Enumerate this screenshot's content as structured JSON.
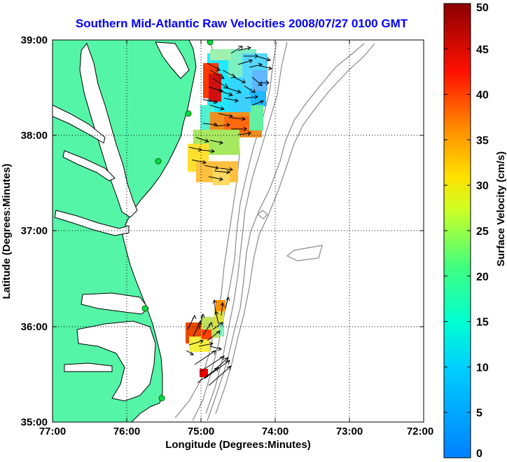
{
  "title": "Southern Mid-Atlantic Raw Velocities 2008/07/27 0100 GMT",
  "x_axis": {
    "label": "Longitude (Degrees:Minutes)",
    "ticks": [
      "77:00",
      "76:00",
      "75:00",
      "74:00",
      "73:00",
      "72:00"
    ]
  },
  "y_axis": {
    "label": "Latitude (Degrees:Minutes)",
    "ticks": [
      "39:00",
      "38:00",
      "37:00",
      "36:00",
      "35:00"
    ]
  },
  "colorbar": {
    "label": "Surface Velocity (cm/s)",
    "ticks": [
      "0",
      "5",
      "10",
      "15",
      "20",
      "25",
      "30",
      "35",
      "40",
      "45",
      "50"
    ],
    "range": [
      0,
      50
    ]
  },
  "map": {
    "lon_range": [
      -77,
      -72
    ],
    "lat_range": [
      35,
      39
    ],
    "land_color": "#55f5a8",
    "grid": "dotted"
  }
}
